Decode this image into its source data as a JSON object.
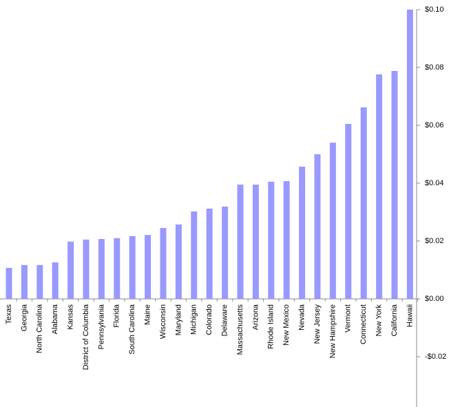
{
  "chart_data": {
    "type": "bar",
    "categories": [
      "Texas",
      "Georgia",
      "North Carolina",
      "Alabama",
      "Kansas",
      "District of Columbia",
      "Pennsylvania",
      "Florida",
      "South Carolina",
      "Maine",
      "Wisconsin",
      "Maryland",
      "Michigan",
      "Colorado",
      "Delaware",
      "Massachusetts",
      "Arizona",
      "Rhode Island",
      "New Mexico",
      "Nevada",
      "New Jersey",
      "New Hampshire",
      "Vermont",
      "Connecticut",
      "New York",
      "California",
      "Hawaii"
    ],
    "values": [
      0.0107,
      0.0117,
      0.0117,
      0.0126,
      0.0198,
      0.0205,
      0.0207,
      0.021,
      0.0217,
      0.0221,
      0.0245,
      0.0257,
      0.0302,
      0.0312,
      0.0319,
      0.0395,
      0.0395,
      0.0405,
      0.0407,
      0.0457,
      0.05,
      0.054,
      0.0605,
      0.0662,
      0.0776,
      0.0788,
      0.1
    ],
    "color": "#9999ff",
    "ylim": [
      -0.0374,
      0.1
    ],
    "yticks": [
      {
        "value": -0.02,
        "label": "-$0.02"
      },
      {
        "value": 0,
        "label": "$0.00"
      },
      {
        "value": 0.02,
        "label": "$0.02"
      },
      {
        "value": 0.04,
        "label": "$0.04"
      },
      {
        "value": 0.06,
        "label": "$0.06"
      },
      {
        "value": 0.08,
        "label": "$0.08"
      },
      {
        "value": 0.1,
        "label": "$0.10"
      }
    ],
    "grid": false
  }
}
